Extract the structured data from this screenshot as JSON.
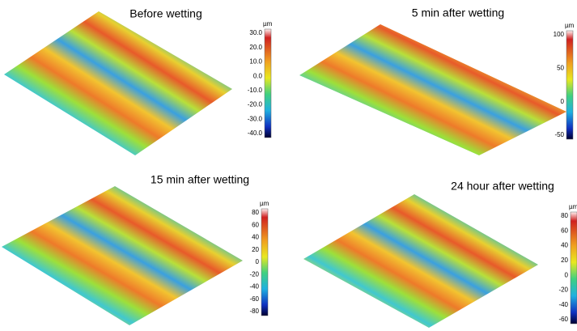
{
  "panels": [
    {
      "title": "Before wetting",
      "unit": "µm",
      "ticks": [
        "30.0",
        "20.0",
        "10.0",
        "0.0",
        "-10.0",
        "-20.0",
        "-30.0",
        "-40.0"
      ]
    },
    {
      "title": "5 min after wetting",
      "unit": "µm",
      "ticks": [
        "100",
        "50",
        "0",
        "-50"
      ]
    },
    {
      "title": "15 min after wetting",
      "unit": "µm",
      "ticks": [
        "80",
        "60",
        "40",
        "20",
        "0",
        "-20",
        "-40",
        "-60",
        "-80"
      ]
    },
    {
      "title": "24 hour after wetting",
      "unit": "µm",
      "ticks": [
        "80",
        "60",
        "40",
        "20",
        "0",
        "-20",
        "-40",
        "-60"
      ]
    }
  ]
}
